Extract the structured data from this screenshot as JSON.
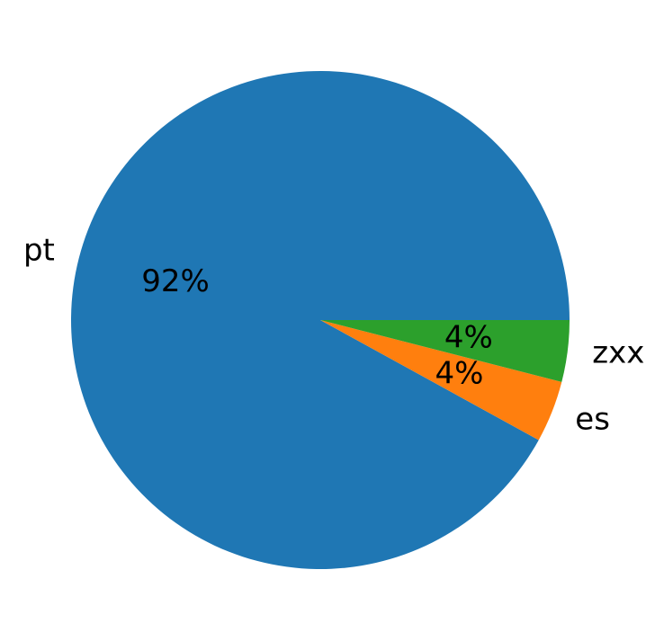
{
  "chart_data": {
    "type": "pie",
    "categories": [
      "pt",
      "es",
      "zxx"
    ],
    "values": [
      92,
      4,
      4
    ],
    "value_labels": [
      "92%",
      "4%",
      "4%"
    ],
    "colors": [
      "#1f77b4",
      "#ff7f0e",
      "#2ca02c"
    ]
  }
}
